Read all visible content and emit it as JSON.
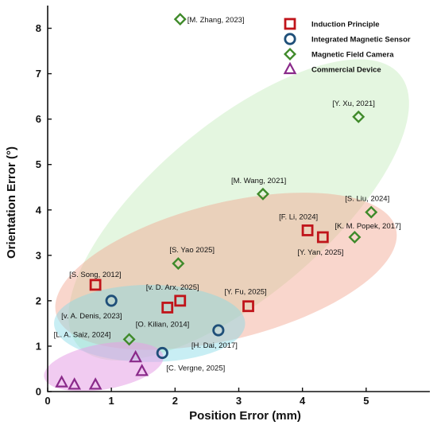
{
  "chart_data": {
    "type": "scatter",
    "xlabel": "Position Error  (mm)",
    "ylabel": "Orientation  Error (°)",
    "xlim": [
      0,
      6
    ],
    "ylim": [
      0,
      8.5
    ],
    "x_ticks": [
      "0",
      "1",
      "2",
      "3",
      "4",
      "5"
    ],
    "y_ticks": [
      "0",
      "1",
      "2",
      "3",
      "4",
      "5",
      "6",
      "7",
      "8"
    ],
    "grid": false,
    "legend_position": "top-right",
    "colors": {
      "induction": "#c0141a",
      "integrated": "#1f4f79",
      "camera": "#3f8a2a",
      "commercial": "#8a2a8a"
    },
    "series": [
      {
        "name": "Induction Principle",
        "marker": "square",
        "color": "#c0141a",
        "points": [
          {
            "x": 0.75,
            "y": 2.35,
            "label": "[S. Song, 2012]"
          },
          {
            "x": 1.88,
            "y": 1.85,
            "label": "[O. Kilian, 2014]"
          },
          {
            "x": 2.08,
            "y": 2.0,
            "label": "[v. D. Arx, 2025]"
          },
          {
            "x": 3.15,
            "y": 1.88,
            "label": "[Y. Fu, 2025]"
          },
          {
            "x": 4.08,
            "y": 3.55,
            "label": "[F. Li, 2024]"
          },
          {
            "x": 4.32,
            "y": 3.4,
            "label": "[Y. Yan, 2025]"
          }
        ]
      },
      {
        "name": "Integrated Magnetic Sensor",
        "marker": "circle",
        "color": "#1f4f79",
        "points": [
          {
            "x": 1.0,
            "y": 2.0,
            "label": "[v. A. Denis, 2023]"
          },
          {
            "x": 1.8,
            "y": 0.85,
            "label": "[C. Vergne, 2025]"
          },
          {
            "x": 2.68,
            "y": 1.35,
            "label": "[H. Dai, 2017]"
          }
        ]
      },
      {
        "name": "Magnetic Field Camera",
        "marker": "diamond",
        "color": "#3f8a2a",
        "points": [
          {
            "x": 2.08,
            "y": 8.2,
            "label": "[M. Zhang, 2023]"
          },
          {
            "x": 4.88,
            "y": 6.05,
            "label": "[Y. Xu, 2021]"
          },
          {
            "x": 3.38,
            "y": 4.35,
            "label": "[M. Wang, 2021]"
          },
          {
            "x": 5.08,
            "y": 3.95,
            "label": "[S. Liu, 2024]"
          },
          {
            "x": 4.82,
            "y": 3.4,
            "label": "[K. M. Popek, 2017]"
          },
          {
            "x": 2.05,
            "y": 2.82,
            "label": "[S. Yao 2025]"
          },
          {
            "x": 1.28,
            "y": 1.15,
            "label": "[L. A. Saiz, 2024]"
          }
        ]
      },
      {
        "name": "Commercial Device",
        "marker": "triangle",
        "color": "#8a2a8a",
        "points": [
          {
            "x": 0.22,
            "y": 0.2,
            "label": ""
          },
          {
            "x": 0.42,
            "y": 0.15,
            "label": ""
          },
          {
            "x": 0.75,
            "y": 0.15,
            "label": ""
          },
          {
            "x": 1.38,
            "y": 0.75,
            "label": ""
          },
          {
            "x": 1.48,
            "y": 0.45,
            "label": ""
          }
        ]
      }
    ],
    "regions": [
      {
        "name": "camera-region",
        "color": "#cdeec6",
        "opacity": 0.55,
        "cx": 3.0,
        "cy": 4.0,
        "rx": 3.3,
        "ry": 1.9,
        "angle": 40
      },
      {
        "name": "induction-region",
        "color": "#f2a38e",
        "opacity": 0.45,
        "cx": 2.8,
        "cy": 2.65,
        "rx": 2.75,
        "ry": 1.5,
        "angle": 14
      },
      {
        "name": "integrated-region",
        "color": "#86d9e6",
        "opacity": 0.45,
        "cx": 1.6,
        "cy": 1.5,
        "rx": 1.5,
        "ry": 0.85,
        "angle": 0
      },
      {
        "name": "commercial-region",
        "color": "#e6a0e6",
        "opacity": 0.55,
        "cx": 0.88,
        "cy": 0.55,
        "rx": 0.95,
        "ry": 0.5,
        "angle": 10
      }
    ]
  }
}
